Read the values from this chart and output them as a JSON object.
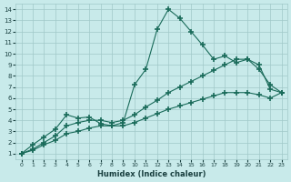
{
  "bg_color": "#c8eaea",
  "grid_color": "#a0c8c8",
  "line_color": "#1a6b5a",
  "xlabel": "Humidex (Indice chaleur)",
  "xlim": [
    -0.5,
    23.5
  ],
  "ylim": [
    0.5,
    14.5
  ],
  "xticks": [
    0,
    1,
    2,
    3,
    4,
    5,
    6,
    7,
    8,
    9,
    10,
    11,
    12,
    13,
    14,
    15,
    16,
    17,
    18,
    19,
    20,
    21,
    22,
    23
  ],
  "yticks": [
    1,
    2,
    3,
    4,
    5,
    6,
    7,
    8,
    9,
    10,
    11,
    12,
    13,
    14
  ],
  "series1_x": [
    0,
    1,
    2,
    3,
    4,
    5,
    6,
    7,
    8,
    9,
    10,
    11,
    12,
    13,
    14,
    15,
    16,
    17,
    18,
    19,
    20,
    21,
    22,
    23
  ],
  "series1_y": [
    1.0,
    1.8,
    2.5,
    3.2,
    4.5,
    4.2,
    4.3,
    3.7,
    3.5,
    3.8,
    7.2,
    8.6,
    12.2,
    14.0,
    13.2,
    12.0,
    10.8,
    9.5,
    9.8,
    9.2,
    9.5,
    8.6,
    7.2,
    6.5
  ],
  "series2_x": [
    0,
    1,
    2,
    3,
    4,
    5,
    6,
    7,
    8,
    9,
    10,
    11,
    12,
    13,
    14,
    15,
    16,
    17,
    18,
    19,
    20,
    21,
    22,
    23
  ],
  "series2_y": [
    1.0,
    1.4,
    2.0,
    2.6,
    3.5,
    3.8,
    4.0,
    4.0,
    3.8,
    4.0,
    4.5,
    5.2,
    5.8,
    6.5,
    7.0,
    7.5,
    8.0,
    8.5,
    9.0,
    9.5,
    9.5,
    9.0,
    6.8,
    6.5
  ],
  "series3_x": [
    0,
    1,
    2,
    3,
    4,
    5,
    6,
    7,
    8,
    9,
    10,
    11,
    12,
    13,
    14,
    15,
    16,
    17,
    18,
    19,
    20,
    21,
    22,
    23
  ],
  "series3_y": [
    1.0,
    1.3,
    1.8,
    2.2,
    2.8,
    3.0,
    3.3,
    3.5,
    3.5,
    3.5,
    3.8,
    4.2,
    4.6,
    5.0,
    5.3,
    5.6,
    5.9,
    6.2,
    6.5,
    6.5,
    6.5,
    6.3,
    6.0,
    6.5
  ]
}
